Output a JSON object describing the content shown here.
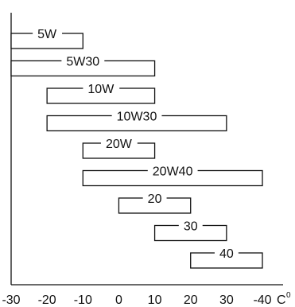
{
  "chart_data": {
    "type": "bar",
    "orientation": "horizontal-range",
    "title": "",
    "xlabel": "",
    "ylabel": "",
    "x_ticks": [
      "-30",
      "-20",
      "-10",
      "0",
      "10",
      "20",
      "30",
      "-40"
    ],
    "unit_label": "C",
    "unit_superscript": "0",
    "xlim": [
      -30,
      50
    ],
    "grid": false,
    "legend": "none",
    "series": [
      {
        "name": "5W",
        "min": -30,
        "max": -10
      },
      {
        "name": "5W30",
        "min": -30,
        "max": 10
      },
      {
        "name": "10W",
        "min": -20,
        "max": 10
      },
      {
        "name": "10W30",
        "min": -20,
        "max": 30
      },
      {
        "name": "20W",
        "min": -10,
        "max": 10
      },
      {
        "name": "20W40",
        "min": -10,
        "max": 40
      },
      {
        "name": "20",
        "min": 0,
        "max": 20
      },
      {
        "name": "30",
        "min": 10,
        "max": 30
      },
      {
        "name": "40",
        "min": 20,
        "max": 40
      }
    ],
    "colors": {
      "stroke": "#111111",
      "fill": "#ffffff",
      "text": "#111111"
    }
  }
}
